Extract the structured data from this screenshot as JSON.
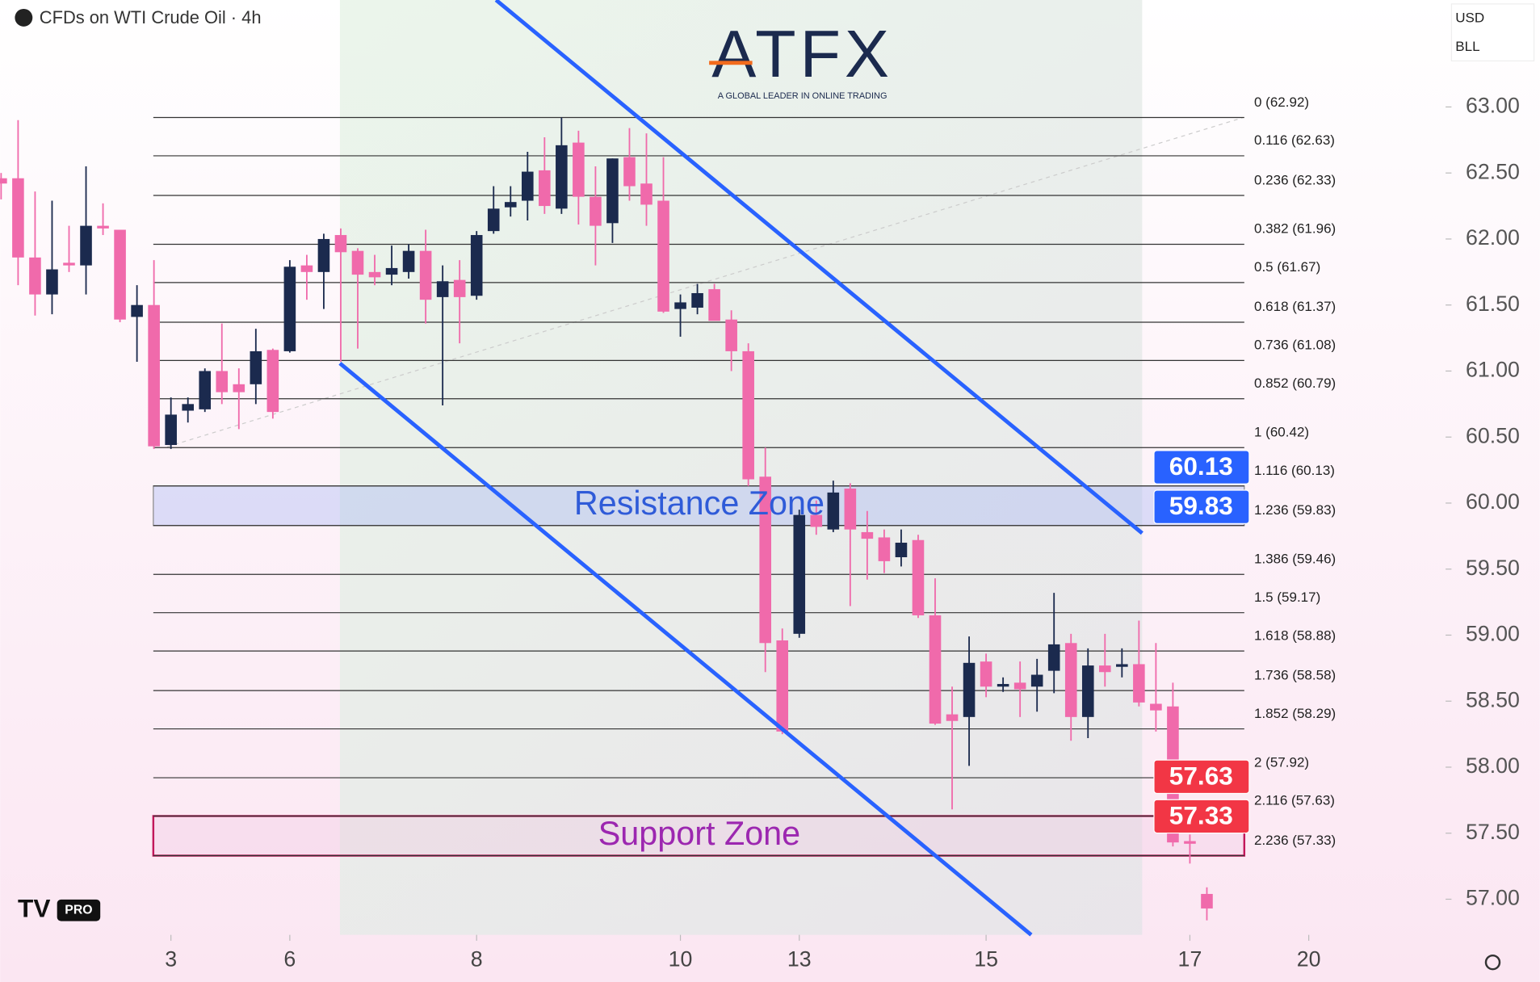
{
  "header": {
    "symbol": "CFDs on WTI Crude Oil · 4h",
    "currency": "USD",
    "unit": "BLL"
  },
  "logo": {
    "name": "ATFX",
    "tagline": "A GLOBAL LEADER IN ONLINE TRADING",
    "badge": "PRO"
  },
  "chart_data": {
    "type": "candlestick",
    "xlim": [
      0,
      85
    ],
    "ylim": [
      56.73,
      63.81
    ],
    "xticks": [
      {
        "value": 10,
        "label": "3"
      },
      {
        "value": 17,
        "label": "6"
      },
      {
        "value": 28,
        "label": "8"
      },
      {
        "value": 40,
        "label": "10"
      },
      {
        "value": 47,
        "label": "13"
      },
      {
        "value": 58,
        "label": "15"
      },
      {
        "value": 70,
        "label": "17"
      },
      {
        "value": 77,
        "label": "20"
      }
    ],
    "yticks": [
      {
        "value": 63,
        "label": "63.00"
      },
      {
        "value": 62.5,
        "label": "62.50"
      },
      {
        "value": 62,
        "label": "62.00"
      },
      {
        "value": 61.5,
        "label": "61.50"
      },
      {
        "value": 61,
        "label": "61.00"
      },
      {
        "value": 60.5,
        "label": "60.50"
      },
      {
        "value": 60,
        "label": "60.00"
      },
      {
        "value": 59.5,
        "label": "59.50"
      },
      {
        "value": 59,
        "label": "59.00"
      },
      {
        "value": 58.5,
        "label": "58.50"
      },
      {
        "value": 58,
        "label": "58.00"
      },
      {
        "value": 57.5,
        "label": "57.50"
      },
      {
        "value": 57,
        "label": "57.00"
      }
    ],
    "up_color": "#1b2a4e",
    "down_color": "#f06aab",
    "ohlc": [
      [
        62.46,
        62.5,
        62.3,
        62.42
      ],
      [
        62.46,
        62.9,
        61.65,
        61.86
      ],
      [
        61.86,
        62.36,
        61.42,
        61.58
      ],
      [
        61.58,
        62.29,
        61.43,
        61.77
      ],
      [
        61.82,
        62.1,
        61.75,
        61.8
      ],
      [
        61.8,
        62.55,
        61.58,
        62.1
      ],
      [
        62.1,
        62.27,
        62.03,
        62.08
      ],
      [
        62.07,
        62.07,
        61.37,
        61.39
      ],
      [
        61.41,
        61.65,
        61.07,
        61.5
      ],
      [
        61.5,
        61.84,
        60.41,
        60.43
      ],
      [
        60.44,
        60.8,
        60.41,
        60.67
      ],
      [
        60.7,
        60.8,
        60.61,
        60.75
      ],
      [
        60.71,
        61.02,
        60.69,
        61
      ],
      [
        61,
        61.36,
        60.75,
        60.84
      ],
      [
        60.9,
        61.02,
        60.56,
        60.84
      ],
      [
        60.9,
        61.32,
        60.75,
        61.15
      ],
      [
        61.16,
        61.17,
        60.64,
        60.69
      ],
      [
        61.15,
        61.84,
        61.14,
        61.79
      ],
      [
        61.8,
        61.88,
        61.54,
        61.75
      ],
      [
        61.75,
        62.04,
        61.47,
        62
      ],
      [
        62.03,
        62.08,
        61.07,
        61.9
      ],
      [
        61.91,
        61.93,
        61.17,
        61.73
      ],
      [
        61.75,
        61.88,
        61.65,
        61.71
      ],
      [
        61.73,
        61.95,
        61.65,
        61.78
      ],
      [
        61.75,
        61.96,
        61.7,
        61.91
      ],
      [
        61.91,
        62.07,
        61.36,
        61.54
      ],
      [
        61.56,
        61.8,
        60.74,
        61.68
      ],
      [
        61.69,
        61.84,
        61.21,
        61.56
      ],
      [
        61.57,
        62.06,
        61.54,
        62.03
      ],
      [
        62.06,
        62.4,
        62.04,
        62.23
      ],
      [
        62.24,
        62.4,
        62.17,
        62.28
      ],
      [
        62.29,
        62.66,
        62.14,
        62.51
      ],
      [
        62.52,
        62.77,
        62.19,
        62.25
      ],
      [
        62.23,
        62.92,
        62.19,
        62.71
      ],
      [
        62.73,
        62.82,
        62.11,
        62.32
      ],
      [
        62.32,
        62.55,
        61.8,
        62.1
      ],
      [
        62.12,
        62.61,
        61.97,
        62.61
      ],
      [
        62.62,
        62.84,
        62.29,
        62.4
      ],
      [
        62.42,
        62.8,
        62.1,
        62.26
      ],
      [
        62.29,
        62.62,
        61.44,
        61.45
      ],
      [
        61.47,
        61.58,
        61.26,
        61.52
      ],
      [
        61.48,
        61.66,
        61.43,
        61.59
      ],
      [
        61.62,
        61.66,
        61.41,
        61.38
      ],
      [
        61.39,
        61.46,
        61,
        61.15
      ],
      [
        61.15,
        61.21,
        60.13,
        60.18
      ],
      [
        60.2,
        60.42,
        58.72,
        58.94
      ],
      [
        58.96,
        59.05,
        58.25,
        58.27
      ],
      [
        59.01,
        59.95,
        58.98,
        59.91
      ],
      [
        59.91,
        60.02,
        59.76,
        59.82
      ],
      [
        59.8,
        60.17,
        59.78,
        60.08
      ],
      [
        60.11,
        60.15,
        59.22,
        59.8
      ],
      [
        59.78,
        59.94,
        59.42,
        59.73
      ],
      [
        59.74,
        59.8,
        59.47,
        59.56
      ],
      [
        59.59,
        59.8,
        59.52,
        59.7
      ],
      [
        59.72,
        59.76,
        59.13,
        59.15
      ],
      [
        59.15,
        59.43,
        58.32,
        58.33
      ],
      [
        58.4,
        58.61,
        57.68,
        58.35
      ],
      [
        58.38,
        58.99,
        58.01,
        58.79
      ],
      [
        58.8,
        58.86,
        58.53,
        58.61
      ],
      [
        58.61,
        58.68,
        58.57,
        58.63
      ],
      [
        58.64,
        58.8,
        58.38,
        58.59
      ],
      [
        58.61,
        58.82,
        58.42,
        58.7
      ],
      [
        58.73,
        59.32,
        58.56,
        58.93
      ],
      [
        58.94,
        59.01,
        58.2,
        58.38
      ],
      [
        58.38,
        58.9,
        58.22,
        58.77
      ],
      [
        58.77,
        59.01,
        58.61,
        58.72
      ],
      [
        58.76,
        58.9,
        58.68,
        58.78
      ],
      [
        58.78,
        59.11,
        58.46,
        58.49
      ],
      [
        58.48,
        58.94,
        58.27,
        58.43
      ],
      [
        58.46,
        58.64,
        57.4,
        57.43
      ],
      [
        57.44,
        57.49,
        57.27,
        57.42
      ],
      [
        57.04,
        57.09,
        56.84,
        56.93
      ]
    ],
    "fib_levels": [
      {
        "label": "0 (62.92)",
        "value": 62.92
      },
      {
        "label": "0.116 (62.63)",
        "value": 62.63
      },
      {
        "label": "0.236 (62.33)",
        "value": 62.33
      },
      {
        "label": "0.382 (61.96)",
        "value": 61.96
      },
      {
        "label": "0.5 (61.67)",
        "value": 61.67
      },
      {
        "label": "0.618 (61.37)",
        "value": 61.37
      },
      {
        "label": "0.736 (61.08)",
        "value": 61.08
      },
      {
        "label": "0.852 (60.79)",
        "value": 60.79
      },
      {
        "label": "1 (60.42)",
        "value": 60.42
      },
      {
        "label": "1.116 (60.13)",
        "value": 60.13
      },
      {
        "label": "1.236 (59.83)",
        "value": 59.83
      },
      {
        "label": "1.386 (59.46)",
        "value": 59.46
      },
      {
        "label": "1.5 (59.17)",
        "value": 59.17
      },
      {
        "label": "1.618 (58.88)",
        "value": 58.88
      },
      {
        "label": "1.736 (58.58)",
        "value": 58.58
      },
      {
        "label": "1.852 (58.29)",
        "value": 58.29
      },
      {
        "label": "2 (57.92)",
        "value": 57.92
      },
      {
        "label": "2.116 (57.63)",
        "value": 57.63
      },
      {
        "label": "2.236 (57.33)",
        "value": 57.33
      }
    ],
    "zones": [
      {
        "label": "Resistance Zone",
        "from": 60.13,
        "to": 59.83,
        "fill": "rgba(170,185,245,0.4)",
        "stroke": "#888",
        "text_color": "#2f5bd8"
      },
      {
        "label": "Support Zone",
        "from": 57.63,
        "to": 57.33,
        "fill": "rgba(240,200,225,0.35)",
        "stroke": "#c2185b",
        "text_color": "#9c27b0"
      }
    ],
    "price_tags": [
      {
        "value": 60.13,
        "color": "#2962ff"
      },
      {
        "value": 59.83,
        "color": "#2962ff"
      },
      {
        "value": 57.63,
        "color": "#f23645"
      },
      {
        "value": 57.33,
        "color": "#f23645"
      }
    ]
  }
}
